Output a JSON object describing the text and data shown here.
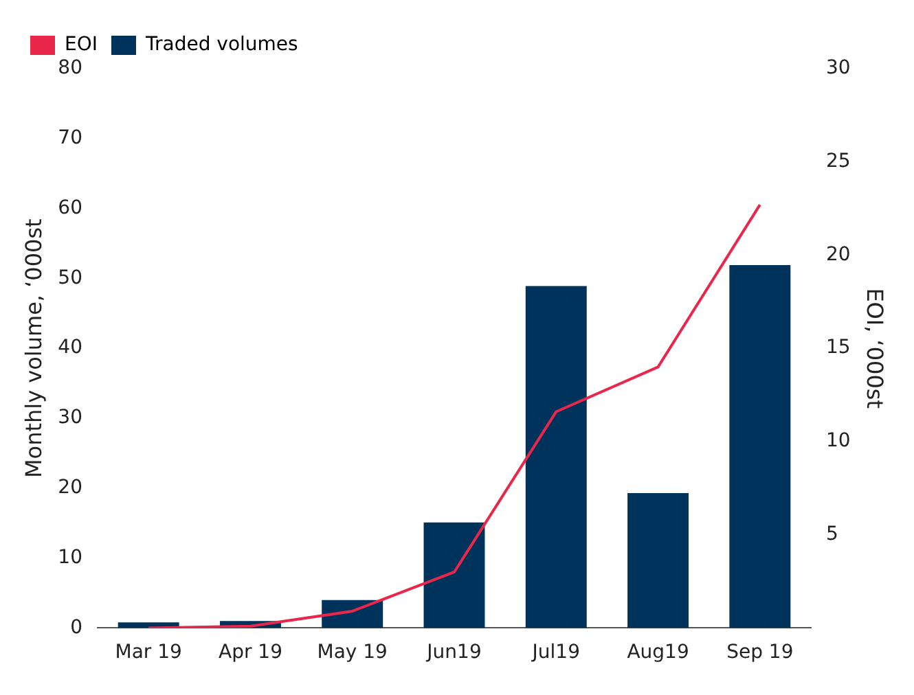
{
  "chart_data": {
    "type": "bar",
    "ylabel": "Monthly volume, ‘000st",
    "y2label": "EOI, ‘000st",
    "categories": [
      "Mar 19",
      "Apr 19",
      "May 19",
      "Jun19",
      "Jul19",
      "Aug19",
      "Sep 19"
    ],
    "series": [
      {
        "name": "EOI",
        "type": "line",
        "axis": "y2",
        "color": "#e8274b",
        "values": [
          0,
          0.1,
          0.9,
          3.0,
          11.6,
          14.0,
          22.7
        ]
      },
      {
        "name": "Traded volumes",
        "color": "#00335b",
        "values": [
          0.8,
          1.0,
          4.0,
          15.1,
          48.9,
          19.3,
          51.9
        ]
      }
    ],
    "ylim": [
      0,
      80
    ],
    "yticks": [
      0,
      10,
      20,
      30,
      40,
      50,
      60,
      70,
      80
    ],
    "y2lim": [
      0,
      30
    ],
    "y2ticks": [
      5,
      10,
      15,
      20,
      25,
      30
    ],
    "legend": "top left",
    "grid": false,
    "marker": "none",
    "line_style": "solid"
  }
}
